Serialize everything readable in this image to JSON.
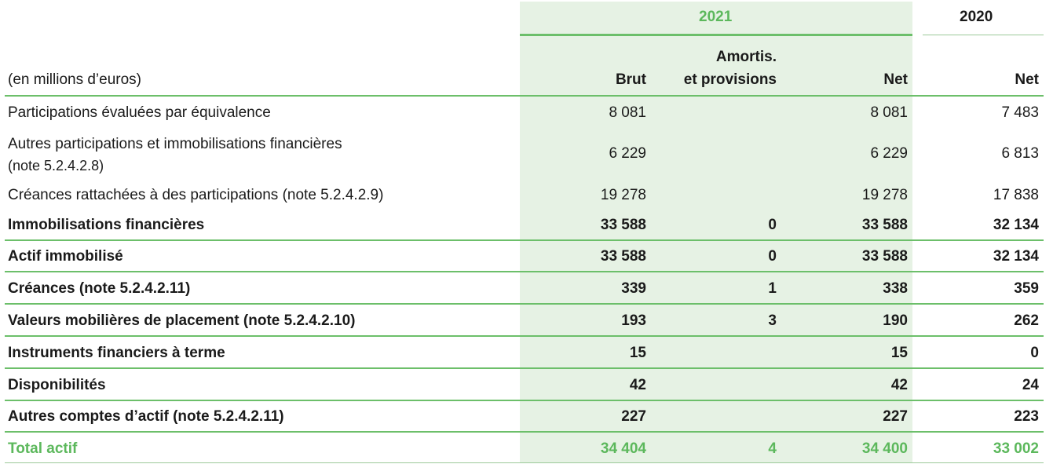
{
  "header": {
    "year_current": "2021",
    "year_previous": "2020",
    "unit_label": "(en millions d’euros)",
    "col_brut": "Brut",
    "col_amort_line1": "Amortis.",
    "col_amort_line2": "et provisions",
    "col_net": "Net",
    "col_net_prev": "Net"
  },
  "rows": [
    {
      "label": "Participations évaluées par équivalence",
      "brut": "8 081",
      "amort": "",
      "net": "8 081",
      "net_prev": "7 483"
    },
    {
      "label": "Autres participations et immobilisations financières",
      "label2": "(note 5.2.4.2.8)",
      "brut": "6 229",
      "amort": "",
      "net": "6 229",
      "net_prev": "6 813"
    },
    {
      "label": "Créances rattachées à des participations (note 5.2.4.2.9)",
      "brut": "19 278",
      "amort": "",
      "net": "19 278",
      "net_prev": "17 838"
    },
    {
      "label": "Immobilisations financières",
      "brut": "33 588",
      "amort": "0",
      "net": "33 588",
      "net_prev": "32 134"
    },
    {
      "label": "Actif immobilisé",
      "brut": "33 588",
      "amort": "0",
      "net": "33 588",
      "net_prev": "32 134"
    },
    {
      "label": "Créances (note 5.2.4.2.11)",
      "brut": "339",
      "amort": "1",
      "net": "338",
      "net_prev": "359"
    },
    {
      "label": "Valeurs mobilières de placement (note 5.2.4.2.10)",
      "brut": "193",
      "amort": "3",
      "net": "190",
      "net_prev": "262"
    },
    {
      "label": "Instruments financiers à terme",
      "brut": "15",
      "amort": "",
      "net": "15",
      "net_prev": "0"
    },
    {
      "label": "Disponibilités",
      "brut": "42",
      "amort": "",
      "net": "42",
      "net_prev": "24"
    },
    {
      "label": "Autres comptes d’actif (note 5.2.4.2.11)",
      "brut": "227",
      "amort": "",
      "net": "227",
      "net_prev": "223"
    },
    {
      "label": "Total actif",
      "brut": "34 404",
      "amort": "4",
      "net": "34 400",
      "net_prev": "33 002"
    }
  ],
  "colors": {
    "accent": "#5cb85c",
    "shade": "#e6f2e4"
  }
}
